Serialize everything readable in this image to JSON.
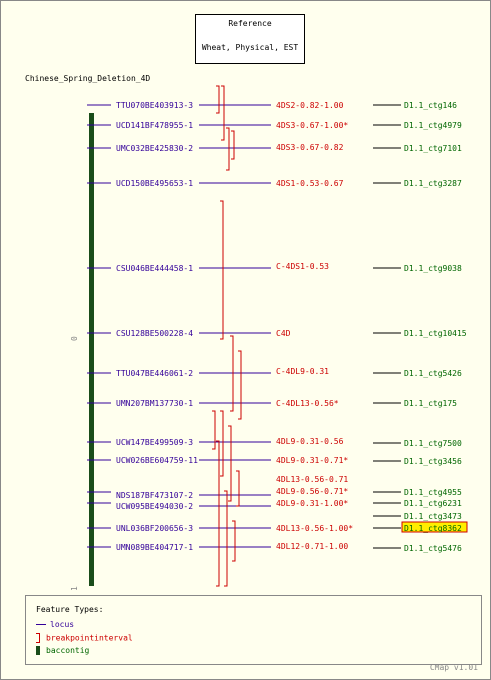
{
  "reference": {
    "title": "Reference",
    "subtitle": "Wheat, Physical, EST"
  },
  "map_title": "Chinese_Spring_Deletion_4D",
  "axis_ticks": [
    "0",
    "1"
  ],
  "colors": {
    "locus": "#330099",
    "interval": "#cc0000",
    "contig": "#006600",
    "bar": "#1a4d1a",
    "highlight": "#ffee00"
  },
  "loci": [
    {
      "name": "TTU070BE403913-3",
      "interval": "4DS2-0.82-1.00",
      "contig": "D1.1_ctg146"
    },
    {
      "name": "UCD141BF478955-1",
      "interval": "4DS3-0.67-1.00*",
      "contig": "D1.1_ctg4979"
    },
    {
      "name": "UMC032BE425830-2",
      "interval": "4DS3-0.67-0.82",
      "contig": "D1.1_ctg7101"
    },
    {
      "name": "UCD150BE495653-1",
      "interval": "4DS1-0.53-0.67",
      "contig": "D1.1_ctg3287"
    },
    {
      "name": "CSU046BE444458-1",
      "interval": "C-4DS1-0.53",
      "contig": "D1.1_ctg9038"
    },
    {
      "name": "CSU128BE500228-4",
      "interval": "C4D",
      "contig": "D1.1_ctg10415"
    },
    {
      "name": "TTU047BE446061-2",
      "interval": "C-4DL9-0.31",
      "contig": "D1.1_ctg5426"
    },
    {
      "name": "UMN207BM137730-1",
      "interval": "C-4DL13-0.56*",
      "contig": "D1.1_ctg175"
    },
    {
      "name": "UCW147BE499509-3",
      "interval": "4DL9-0.31-0.56",
      "contig": "D1.1_ctg7500"
    },
    {
      "name": "UCW026BE604759-11",
      "interval": "4DL9-0.31-0.71*",
      "contig": "D1.1_ctg3456"
    },
    {
      "name": "NDS187BF473107-2",
      "interval": "4DL13-0.56-0.71",
      "contig": ""
    },
    {
      "name": "UCW095BE494030-2",
      "interval": "4DL9-0.56-0.71*",
      "contig": "D1.1_ctg4955"
    },
    {
      "name": "",
      "interval": "4DL9-0.31-1.00*",
      "contig": "D1.1_ctg6231"
    },
    {
      "name": "",
      "interval": "",
      "contig": "D1.1_ctg3473"
    },
    {
      "name": "UNL036BF200656-3",
      "interval": "4DL13-0.56-1.00*",
      "contig": "D1.1_ctg8362"
    },
    {
      "name": "UMN089BE404717-1",
      "interval": "4DL12-0.71-1.00",
      "contig": "D1.1_ctg5476"
    }
  ],
  "legend": {
    "title": "Feature Types:",
    "items": [
      {
        "label": "locus",
        "kind": "locus"
      },
      {
        "label": "breakpointinterval",
        "kind": "breakpoint"
      },
      {
        "label": "baccontig",
        "kind": "contig"
      }
    ]
  },
  "credit": "CMap v1.01"
}
